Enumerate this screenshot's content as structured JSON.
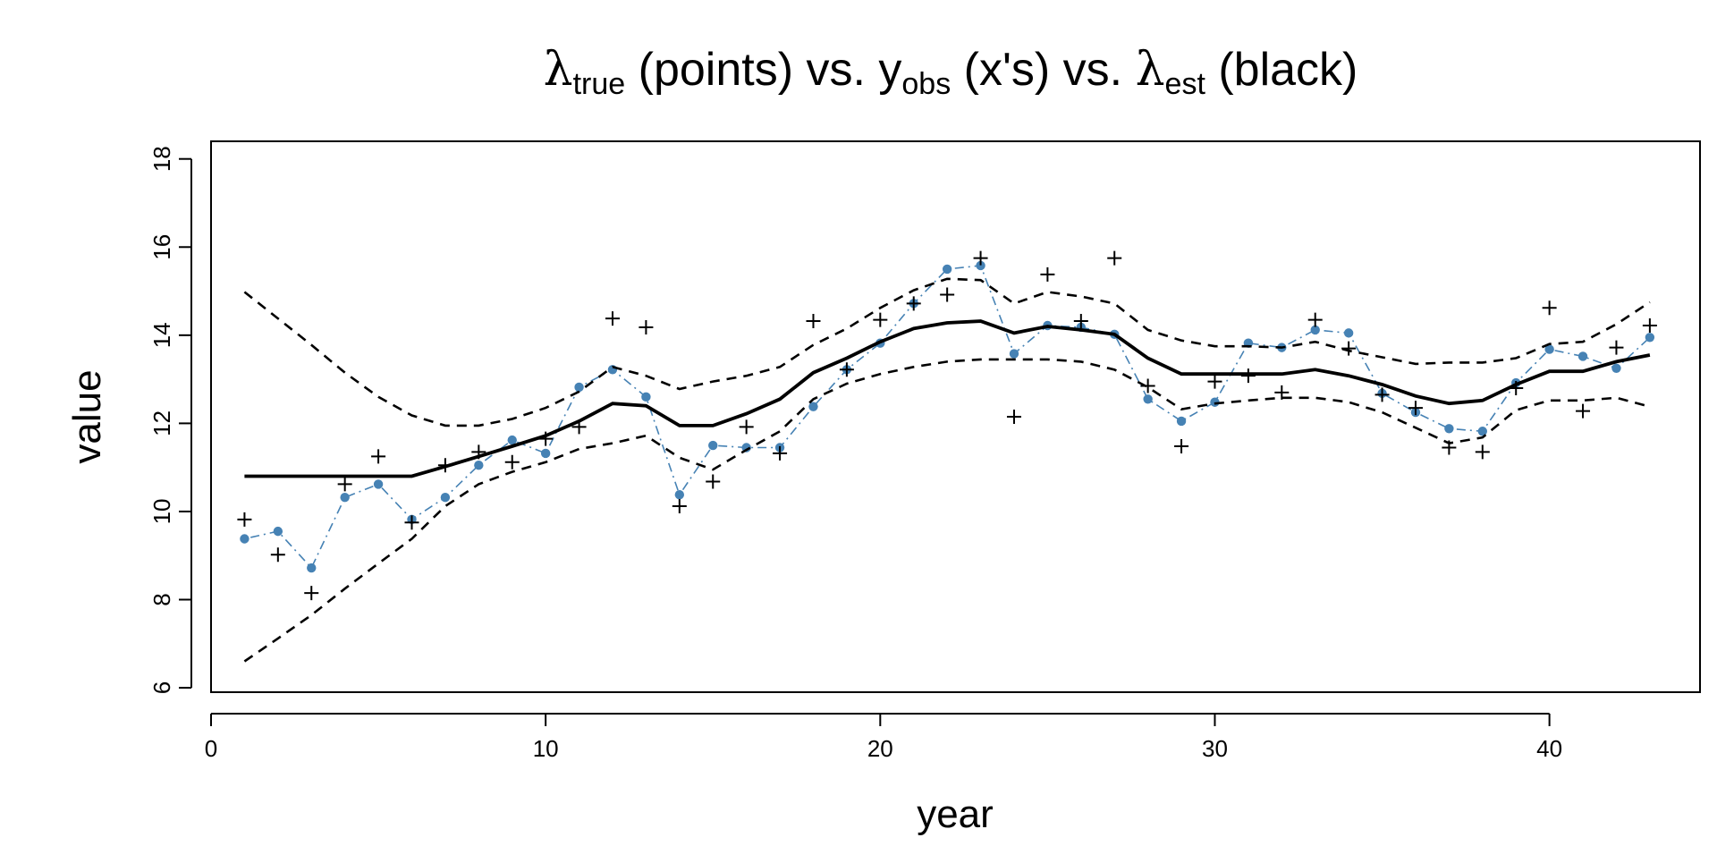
{
  "chart_data": {
    "type": "line",
    "title": {
      "segments": [
        {
          "text": "λ",
          "style": "greek"
        },
        {
          "text": "true",
          "style": "sub"
        },
        {
          "text": " (points) vs. y",
          "style": "normal"
        },
        {
          "text": "obs",
          "style": "sub"
        },
        {
          "text": " (x's) vs. ",
          "style": "normal"
        },
        {
          "text": "λ",
          "style": "greek"
        },
        {
          "text": "est",
          "style": "sub"
        },
        {
          "text": " (black)",
          "style": "normal"
        }
      ]
    },
    "xlabel": "year",
    "ylabel": "value",
    "xlim": [
      0,
      44.5
    ],
    "ylim": [
      5.9,
      18.4
    ],
    "x_ticks": [
      0,
      10,
      20,
      30,
      40
    ],
    "y_ticks": [
      6,
      8,
      10,
      12,
      14,
      16,
      18
    ],
    "grid": false,
    "legend": "none",
    "x": [
      1,
      2,
      3,
      4,
      5,
      6,
      7,
      8,
      9,
      10,
      11,
      12,
      13,
      14,
      15,
      16,
      17,
      18,
      19,
      20,
      21,
      22,
      23,
      24,
      25,
      26,
      27,
      28,
      29,
      30,
      31,
      32,
      33,
      34,
      35,
      36,
      37,
      38,
      39,
      40,
      41,
      42,
      43
    ],
    "series": [
      {
        "id": "lambda_true",
        "color": "#4682b4",
        "style": "points-dotdash",
        "values": [
          9.38,
          9.55,
          8.72,
          10.32,
          10.62,
          9.82,
          10.32,
          11.05,
          11.62,
          11.32,
          12.82,
          13.22,
          12.6,
          10.38,
          11.5,
          11.45,
          11.45,
          12.38,
          13.22,
          13.82,
          14.72,
          15.5,
          15.58,
          13.58,
          14.22,
          14.18,
          14.02,
          12.55,
          12.05,
          12.48,
          13.82,
          13.72,
          14.12,
          14.05,
          12.68,
          12.25,
          11.88,
          11.82,
          12.92,
          13.68,
          13.52,
          13.25,
          13.95
        ]
      },
      {
        "id": "y_obs",
        "color": "#000000",
        "style": "plus",
        "values": [
          9.82,
          9.02,
          8.15,
          10.62,
          11.25,
          9.75,
          11.05,
          11.35,
          11.12,
          11.65,
          11.92,
          14.38,
          14.18,
          10.12,
          10.68,
          11.92,
          11.32,
          14.32,
          13.22,
          14.35,
          14.72,
          14.92,
          15.75,
          12.15,
          15.38,
          14.32,
          15.75,
          12.85,
          11.48,
          12.95,
          13.08,
          12.7,
          14.35,
          13.7,
          12.65,
          12.35,
          11.45,
          11.35,
          12.8,
          14.62,
          12.28,
          13.72,
          14.22
        ]
      },
      {
        "id": "lambda_est",
        "color": "#000000",
        "style": "solid-thick",
        "values": [
          10.8,
          10.8,
          10.8,
          10.8,
          10.8,
          10.8,
          11.02,
          11.25,
          11.48,
          11.72,
          12.05,
          12.45,
          12.4,
          11.95,
          11.95,
          12.22,
          12.55,
          13.15,
          13.48,
          13.85,
          14.15,
          14.28,
          14.32,
          14.05,
          14.2,
          14.12,
          14.02,
          13.48,
          13.12,
          13.12,
          13.12,
          13.12,
          13.22,
          13.08,
          12.88,
          12.62,
          12.45,
          12.52,
          12.88,
          13.18,
          13.18,
          13.4,
          13.55
        ]
      },
      {
        "id": "upper_bound",
        "color": "#000000",
        "style": "dashed",
        "values": [
          14.98,
          14.38,
          13.78,
          13.15,
          12.6,
          12.18,
          11.95,
          11.95,
          12.1,
          12.35,
          12.72,
          13.28,
          13.08,
          12.78,
          12.95,
          13.08,
          13.28,
          13.78,
          14.15,
          14.62,
          15.02,
          15.28,
          15.25,
          14.72,
          14.98,
          14.88,
          14.72,
          14.12,
          13.88,
          13.75,
          13.75,
          13.72,
          13.85,
          13.65,
          13.5,
          13.35,
          13.38,
          13.38,
          13.48,
          13.8,
          13.85,
          14.25,
          14.75
        ]
      },
      {
        "id": "lower_bound",
        "color": "#000000",
        "style": "dashed",
        "values": [
          6.6,
          7.12,
          7.65,
          8.25,
          8.82,
          9.38,
          10.12,
          10.62,
          10.9,
          11.12,
          11.42,
          11.55,
          11.72,
          11.22,
          10.95,
          11.4,
          11.82,
          12.55,
          12.9,
          13.12,
          13.28,
          13.4,
          13.45,
          13.45,
          13.45,
          13.4,
          13.22,
          12.82,
          12.32,
          12.45,
          12.52,
          12.58,
          12.58,
          12.48,
          12.25,
          11.9,
          11.55,
          11.68,
          12.3,
          12.52,
          12.52,
          12.58,
          12.38
        ]
      }
    ]
  }
}
